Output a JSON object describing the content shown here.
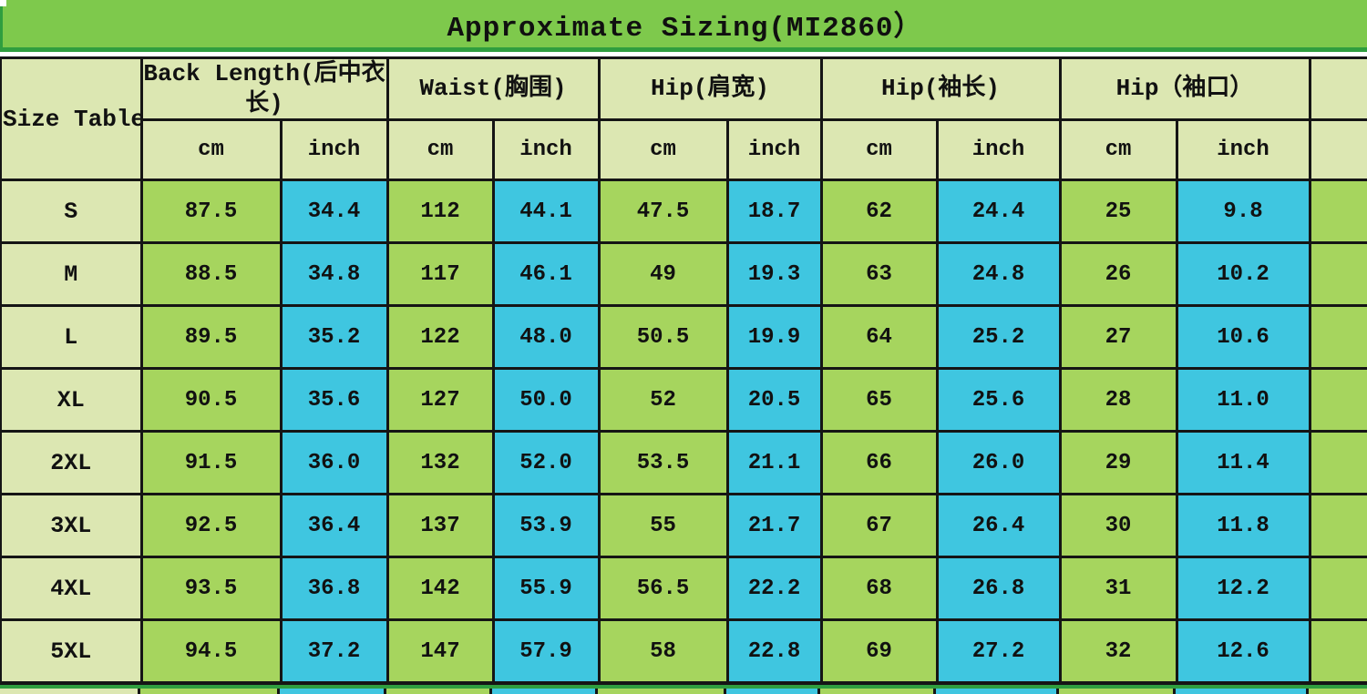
{
  "title": "Approximate Sizing(MI2860）",
  "chart_data": {
    "type": "table",
    "title": "Approximate Sizing(MI2860）",
    "corner_label": "Size Table",
    "column_groups": [
      "Back Length(后中衣长)",
      "Waist(胸围)",
      "Hip(肩宽)",
      "Hip(袖长)",
      "Hip（袖口）"
    ],
    "unit_headers": [
      "cm",
      "inch",
      "cm",
      "inch",
      "cm",
      "inch",
      "cm",
      "inch",
      "cm",
      "inch"
    ],
    "rows": [
      {
        "size": "S",
        "values": [
          "87.5",
          "34.4",
          "112",
          "44.1",
          "47.5",
          "18.7",
          "62",
          "24.4",
          "25",
          "9.8"
        ]
      },
      {
        "size": "M",
        "values": [
          "88.5",
          "34.8",
          "117",
          "46.1",
          "49",
          "19.3",
          "63",
          "24.8",
          "26",
          "10.2"
        ]
      },
      {
        "size": "L",
        "values": [
          "89.5",
          "35.2",
          "122",
          "48.0",
          "50.5",
          "19.9",
          "64",
          "25.2",
          "27",
          "10.6"
        ]
      },
      {
        "size": "XL",
        "values": [
          "90.5",
          "35.6",
          "127",
          "50.0",
          "52",
          "20.5",
          "65",
          "25.6",
          "28",
          "11.0"
        ]
      },
      {
        "size": "2XL",
        "values": [
          "91.5",
          "36.0",
          "132",
          "52.0",
          "53.5",
          "21.1",
          "66",
          "26.0",
          "29",
          "11.4"
        ]
      },
      {
        "size": "3XL",
        "values": [
          "92.5",
          "36.4",
          "137",
          "53.9",
          "55",
          "21.7",
          "67",
          "26.4",
          "30",
          "11.8"
        ]
      },
      {
        "size": "4XL",
        "values": [
          "93.5",
          "36.8",
          "142",
          "55.9",
          "56.5",
          "22.2",
          "68",
          "26.8",
          "31",
          "12.2"
        ]
      },
      {
        "size": "5XL",
        "values": [
          "94.5",
          "37.2",
          "147",
          "57.9",
          "58",
          "22.8",
          "69",
          "27.2",
          "32",
          "12.6"
        ]
      }
    ]
  },
  "colors": {
    "title_bar_green": "#7ec94c",
    "title_rule_green": "#2f9e3f",
    "header_khaki": "#dce7b2",
    "cm_cell_green": "#a6d55e",
    "inch_cell_blue": "#3fc6e0",
    "grid_line": "#151515",
    "text": "#111111"
  }
}
